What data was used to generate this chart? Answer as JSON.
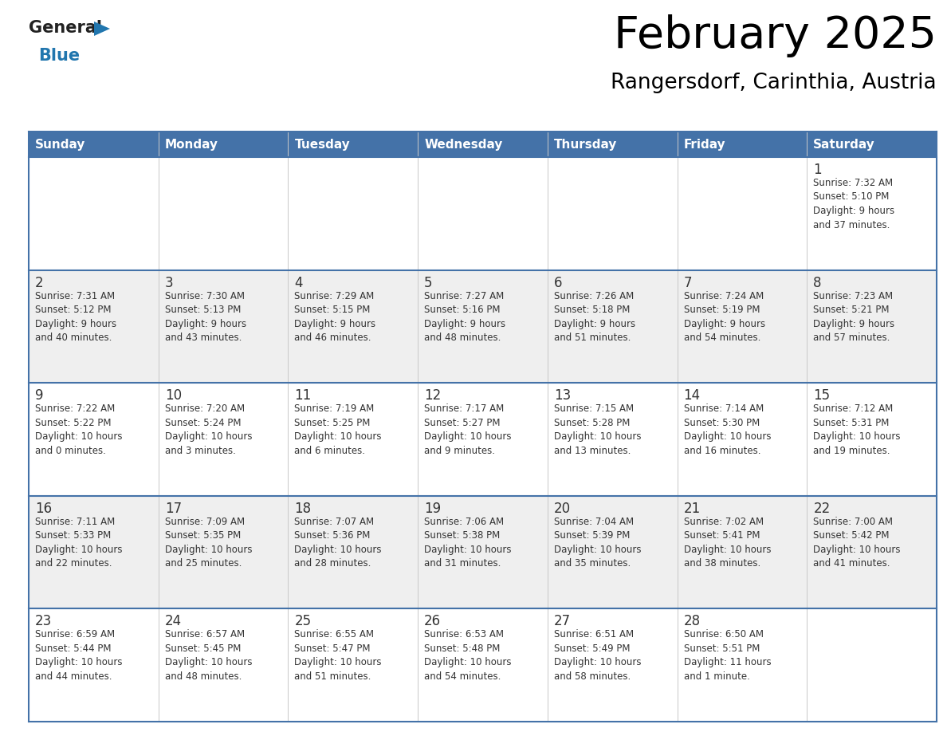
{
  "title": "February 2025",
  "subtitle": "Rangersdorf, Carinthia, Austria",
  "header_bg": "#4472A8",
  "header_text": "#FFFFFF",
  "day_names": [
    "Sunday",
    "Monday",
    "Tuesday",
    "Wednesday",
    "Thursday",
    "Friday",
    "Saturday"
  ],
  "row_bg": [
    "#FFFFFF",
    "#EFEFEF",
    "#FFFFFF",
    "#EFEFEF",
    "#FFFFFF"
  ],
  "border_color": "#4472A8",
  "text_color": "#333333",
  "days": [
    {
      "day": 1,
      "col": 6,
      "row": 0,
      "sunrise": "7:32 AM",
      "sunset": "5:10 PM",
      "daylight": "9 hours and 37 minutes."
    },
    {
      "day": 2,
      "col": 0,
      "row": 1,
      "sunrise": "7:31 AM",
      "sunset": "5:12 PM",
      "daylight": "9 hours and 40 minutes."
    },
    {
      "day": 3,
      "col": 1,
      "row": 1,
      "sunrise": "7:30 AM",
      "sunset": "5:13 PM",
      "daylight": "9 hours and 43 minutes."
    },
    {
      "day": 4,
      "col": 2,
      "row": 1,
      "sunrise": "7:29 AM",
      "sunset": "5:15 PM",
      "daylight": "9 hours and 46 minutes."
    },
    {
      "day": 5,
      "col": 3,
      "row": 1,
      "sunrise": "7:27 AM",
      "sunset": "5:16 PM",
      "daylight": "9 hours and 48 minutes."
    },
    {
      "day": 6,
      "col": 4,
      "row": 1,
      "sunrise": "7:26 AM",
      "sunset": "5:18 PM",
      "daylight": "9 hours and 51 minutes."
    },
    {
      "day": 7,
      "col": 5,
      "row": 1,
      "sunrise": "7:24 AM",
      "sunset": "5:19 PM",
      "daylight": "9 hours and 54 minutes."
    },
    {
      "day": 8,
      "col": 6,
      "row": 1,
      "sunrise": "7:23 AM",
      "sunset": "5:21 PM",
      "daylight": "9 hours and 57 minutes."
    },
    {
      "day": 9,
      "col": 0,
      "row": 2,
      "sunrise": "7:22 AM",
      "sunset": "5:22 PM",
      "daylight": "10 hours and 0 minutes."
    },
    {
      "day": 10,
      "col": 1,
      "row": 2,
      "sunrise": "7:20 AM",
      "sunset": "5:24 PM",
      "daylight": "10 hours and 3 minutes."
    },
    {
      "day": 11,
      "col": 2,
      "row": 2,
      "sunrise": "7:19 AM",
      "sunset": "5:25 PM",
      "daylight": "10 hours and 6 minutes."
    },
    {
      "day": 12,
      "col": 3,
      "row": 2,
      "sunrise": "7:17 AM",
      "sunset": "5:27 PM",
      "daylight": "10 hours and 9 minutes."
    },
    {
      "day": 13,
      "col": 4,
      "row": 2,
      "sunrise": "7:15 AM",
      "sunset": "5:28 PM",
      "daylight": "10 hours and 13 minutes."
    },
    {
      "day": 14,
      "col": 5,
      "row": 2,
      "sunrise": "7:14 AM",
      "sunset": "5:30 PM",
      "daylight": "10 hours and 16 minutes."
    },
    {
      "day": 15,
      "col": 6,
      "row": 2,
      "sunrise": "7:12 AM",
      "sunset": "5:31 PM",
      "daylight": "10 hours and 19 minutes."
    },
    {
      "day": 16,
      "col": 0,
      "row": 3,
      "sunrise": "7:11 AM",
      "sunset": "5:33 PM",
      "daylight": "10 hours and 22 minutes."
    },
    {
      "day": 17,
      "col": 1,
      "row": 3,
      "sunrise": "7:09 AM",
      "sunset": "5:35 PM",
      "daylight": "10 hours and 25 minutes."
    },
    {
      "day": 18,
      "col": 2,
      "row": 3,
      "sunrise": "7:07 AM",
      "sunset": "5:36 PM",
      "daylight": "10 hours and 28 minutes."
    },
    {
      "day": 19,
      "col": 3,
      "row": 3,
      "sunrise": "7:06 AM",
      "sunset": "5:38 PM",
      "daylight": "10 hours and 31 minutes."
    },
    {
      "day": 20,
      "col": 4,
      "row": 3,
      "sunrise": "7:04 AM",
      "sunset": "5:39 PM",
      "daylight": "10 hours and 35 minutes."
    },
    {
      "day": 21,
      "col": 5,
      "row": 3,
      "sunrise": "7:02 AM",
      "sunset": "5:41 PM",
      "daylight": "10 hours and 38 minutes."
    },
    {
      "day": 22,
      "col": 6,
      "row": 3,
      "sunrise": "7:00 AM",
      "sunset": "5:42 PM",
      "daylight": "10 hours and 41 minutes."
    },
    {
      "day": 23,
      "col": 0,
      "row": 4,
      "sunrise": "6:59 AM",
      "sunset": "5:44 PM",
      "daylight": "10 hours and 44 minutes."
    },
    {
      "day": 24,
      "col": 1,
      "row": 4,
      "sunrise": "6:57 AM",
      "sunset": "5:45 PM",
      "daylight": "10 hours and 48 minutes."
    },
    {
      "day": 25,
      "col": 2,
      "row": 4,
      "sunrise": "6:55 AM",
      "sunset": "5:47 PM",
      "daylight": "10 hours and 51 minutes."
    },
    {
      "day": 26,
      "col": 3,
      "row": 4,
      "sunrise": "6:53 AM",
      "sunset": "5:48 PM",
      "daylight": "10 hours and 54 minutes."
    },
    {
      "day": 27,
      "col": 4,
      "row": 4,
      "sunrise": "6:51 AM",
      "sunset": "5:49 PM",
      "daylight": "10 hours and 58 minutes."
    },
    {
      "day": 28,
      "col": 5,
      "row": 4,
      "sunrise": "6:50 AM",
      "sunset": "5:51 PM",
      "daylight": "11 hours and 1 minute."
    }
  ],
  "logo_general_color": "#222222",
  "logo_blue_color": "#2176AE",
  "logo_triangle_color": "#2176AE"
}
